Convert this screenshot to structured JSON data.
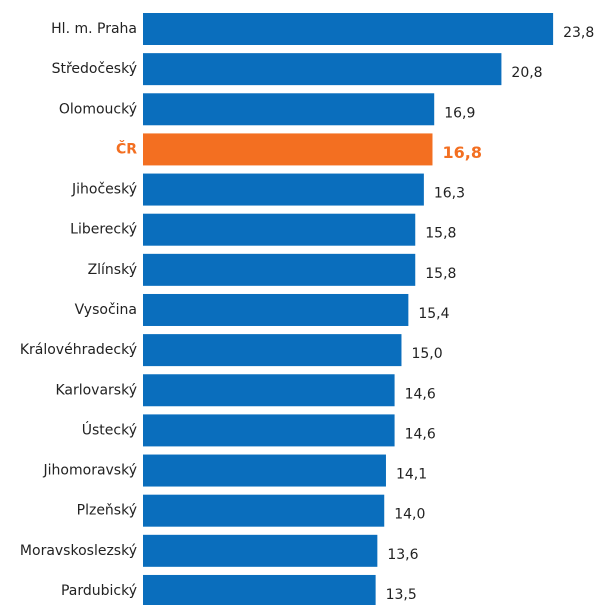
{
  "chart_data": {
    "type": "hbar",
    "categories": [
      "Hl. m. Praha",
      "Středočeský",
      "Olomoucký",
      "ČR",
      "Jihočeský",
      "Liberecký",
      "Zlínský",
      "Vysočina",
      "Královéhradecký",
      "Karlovarský",
      "Ústecký",
      "Jihomoravský",
      "Plzeňský",
      "Moravskoslezský",
      "Pardubický"
    ],
    "values": [
      23.8,
      20.8,
      16.9,
      16.8,
      16.3,
      15.8,
      15.8,
      15.4,
      15.0,
      14.6,
      14.6,
      14.1,
      14.0,
      13.6,
      13.5
    ],
    "value_labels": [
      "23,8",
      "20,8",
      "16,9",
      "16,8",
      "16,3",
      "15,8",
      "15,8",
      "15,4",
      "15,0",
      "14,6",
      "14,6",
      "14,1",
      "14,0",
      "13,6",
      "13,5"
    ],
    "colors": [
      "#0a6ebd",
      "#0a6ebd",
      "#0a6ebd",
      "#f36f21",
      "#0a6ebd",
      "#0a6ebd",
      "#0a6ebd",
      "#0a6ebd",
      "#0a6ebd",
      "#0a6ebd",
      "#0a6ebd",
      "#0a6ebd",
      "#0a6ebd",
      "#0a6ebd",
      "#0a6ebd"
    ],
    "xlim": [
      0,
      24.2
    ]
  }
}
